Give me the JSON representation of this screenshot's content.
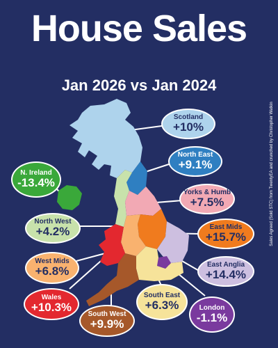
{
  "title": "House Sales",
  "subtitle": "Jan 2026 vs Jan 2024",
  "credit": "Sales Agreed (Sold STC) from TwentyEA and crunched by Christopher Watkin",
  "colors": {
    "background": "#232e63",
    "scotland": "#aed3ec",
    "north_east": "#2f7fc1",
    "yorks_humb": "#f2a9b4",
    "east_mids": "#f07b1e",
    "east_anglia": "#cdbfe0",
    "london": "#7a3a9e",
    "south_east": "#f6e39a",
    "south_west": "#a6582a",
    "wales": "#e3282f",
    "west_mids": "#f9b26f",
    "north_west": "#c8e2ab",
    "n_ireland": "#3aa83a"
  },
  "regions": [
    {
      "key": "scotland",
      "name": "Scotland",
      "change": "+10%"
    },
    {
      "key": "north_east",
      "name": "North East",
      "change": "+9.1%"
    },
    {
      "key": "yorks_humb",
      "name": "Yorks & Humb",
      "change": "+7.5%"
    },
    {
      "key": "east_mids",
      "name": "East Mids",
      "change": "+15.7%"
    },
    {
      "key": "east_anglia",
      "name": "East Anglia",
      "change": "+14.4%"
    },
    {
      "key": "london",
      "name": "London",
      "change": "-1.1%"
    },
    {
      "key": "south_east",
      "name": "South East",
      "change": "+6.3%"
    },
    {
      "key": "south_west",
      "name": "South West",
      "change": "+9.9%"
    },
    {
      "key": "wales",
      "name": "Wales",
      "change": "+10.3%"
    },
    {
      "key": "west_mids",
      "name": "West Mids",
      "change": "+6.8%"
    },
    {
      "key": "north_west",
      "name": "North West",
      "change": "+4.2%"
    },
    {
      "key": "n_ireland",
      "name": "N. Ireland",
      "change": "-13.4%"
    }
  ]
}
